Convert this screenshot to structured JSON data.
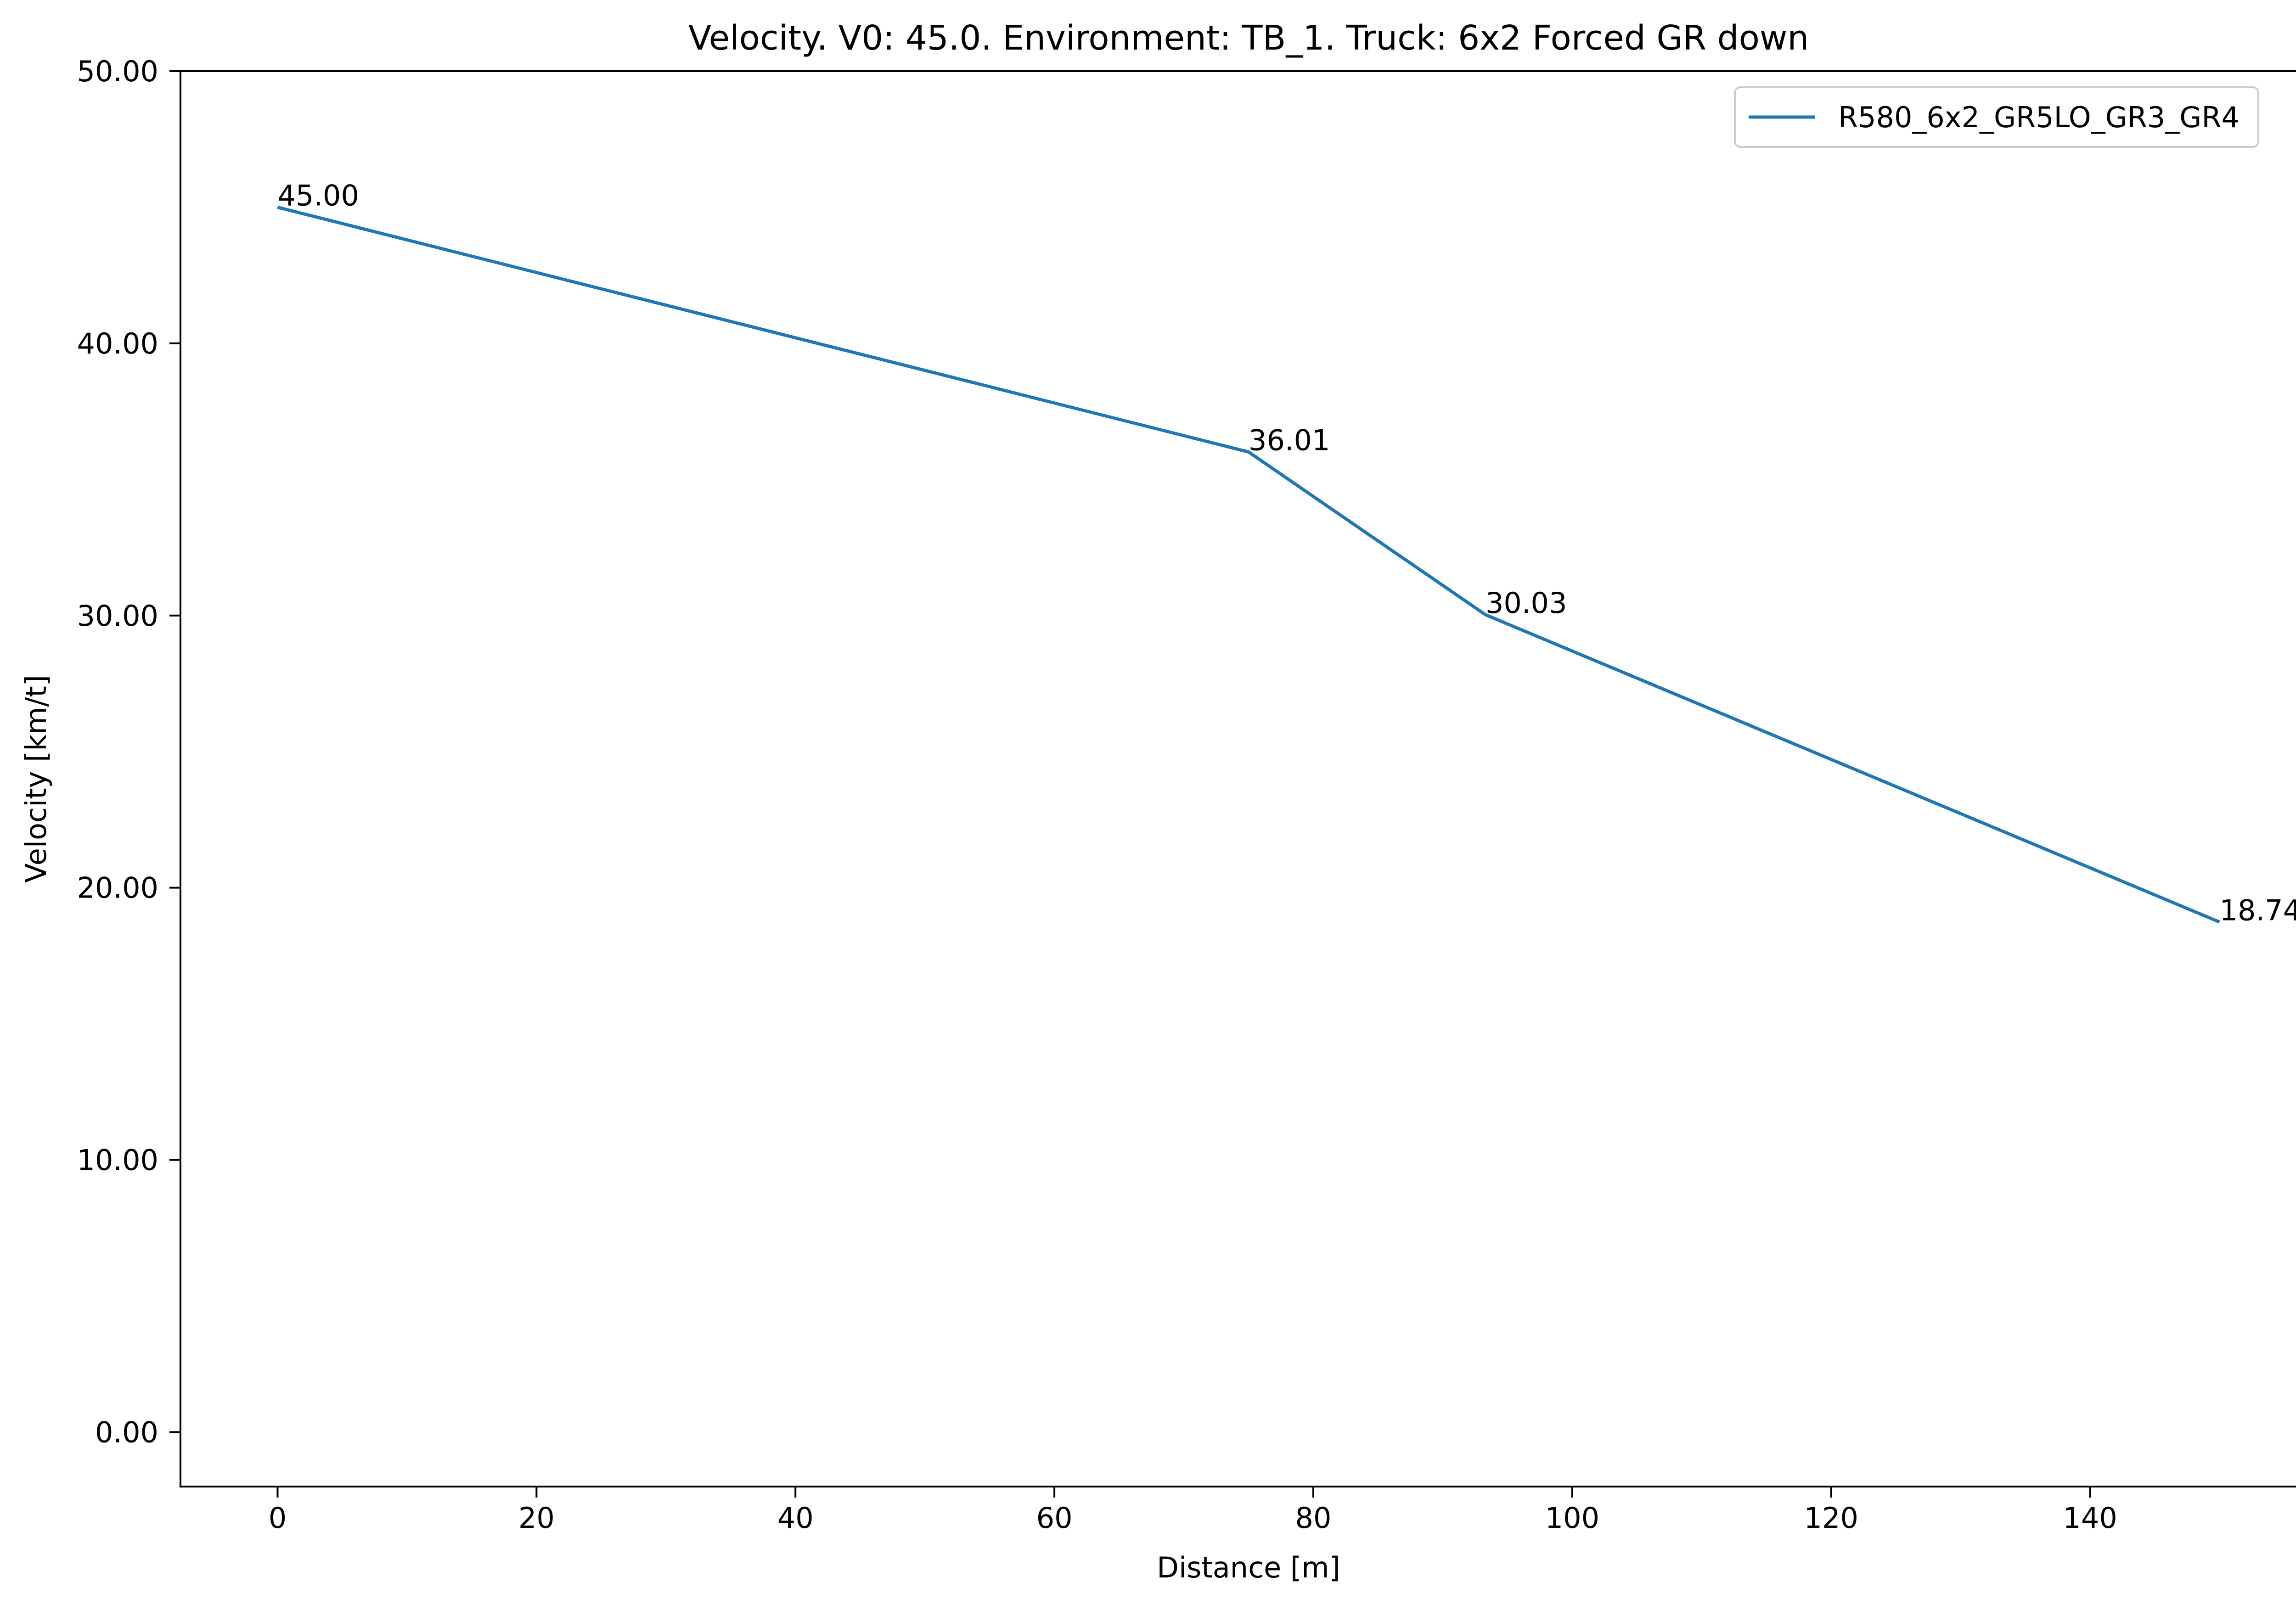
{
  "chart_data": {
    "type": "line",
    "title": "Velocity. V0: 45.0. Environment: TB_1. Truck: 6x2 Forced GR down",
    "xlabel": "Distance [m]",
    "ylabel": "Velocity [km/t]",
    "xlim": [
      -7.5,
      157.5
    ],
    "ylim": [
      -2.0,
      50.0
    ],
    "xticks": [
      0,
      20,
      40,
      60,
      80,
      100,
      120,
      140
    ],
    "xtick_labels": [
      "0",
      "20",
      "40",
      "60",
      "80",
      "100",
      "120",
      "140"
    ],
    "yticks": [
      0,
      10,
      20,
      30,
      40,
      50
    ],
    "ytick_labels": [
      "0.00",
      "10.00",
      "20.00",
      "30.00",
      "40.00",
      "50.00"
    ],
    "grid": false,
    "legend_position": "top-right",
    "series": [
      {
        "name": "R580_6x2_GR5LO_GR3_GR4",
        "color": "#1f77b4",
        "x": [
          0,
          75,
          93.3,
          150
        ],
        "y": [
          45.0,
          36.01,
          30.03,
          18.74
        ],
        "point_labels": [
          "45.00",
          "36.01",
          "30.03",
          "18.74"
        ]
      }
    ]
  }
}
